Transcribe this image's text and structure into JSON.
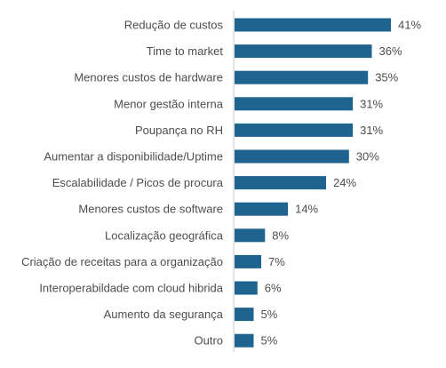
{
  "chart_data": {
    "type": "bar",
    "orientation": "horizontal",
    "categories": [
      "Redução de custos",
      "Time to market",
      "Menores custos de hardware",
      "Menor gestão interna",
      "Poupança no RH",
      "Aumentar a disponibilidade/Uptime",
      "Escalabilidade / Picos de procura",
      "Menores custos de software",
      "Localização geográfica",
      "Criação de receitas para a organização",
      "Interoperabildade com cloud hibrida",
      "Aumento da segurança",
      "Outro"
    ],
    "values": [
      41,
      36,
      35,
      31,
      31,
      30,
      24,
      14,
      8,
      7,
      6,
      5,
      5
    ],
    "value_labels": [
      "41%",
      "36%",
      "35%",
      "31%",
      "31%",
      "30%",
      "24%",
      "14%",
      "8%",
      "7%",
      "6%",
      "5%",
      "5%"
    ],
    "xlim": [
      0,
      41
    ],
    "grid": false,
    "bar_color": "#1f6391",
    "axis_color": "#c8c8c8"
  }
}
